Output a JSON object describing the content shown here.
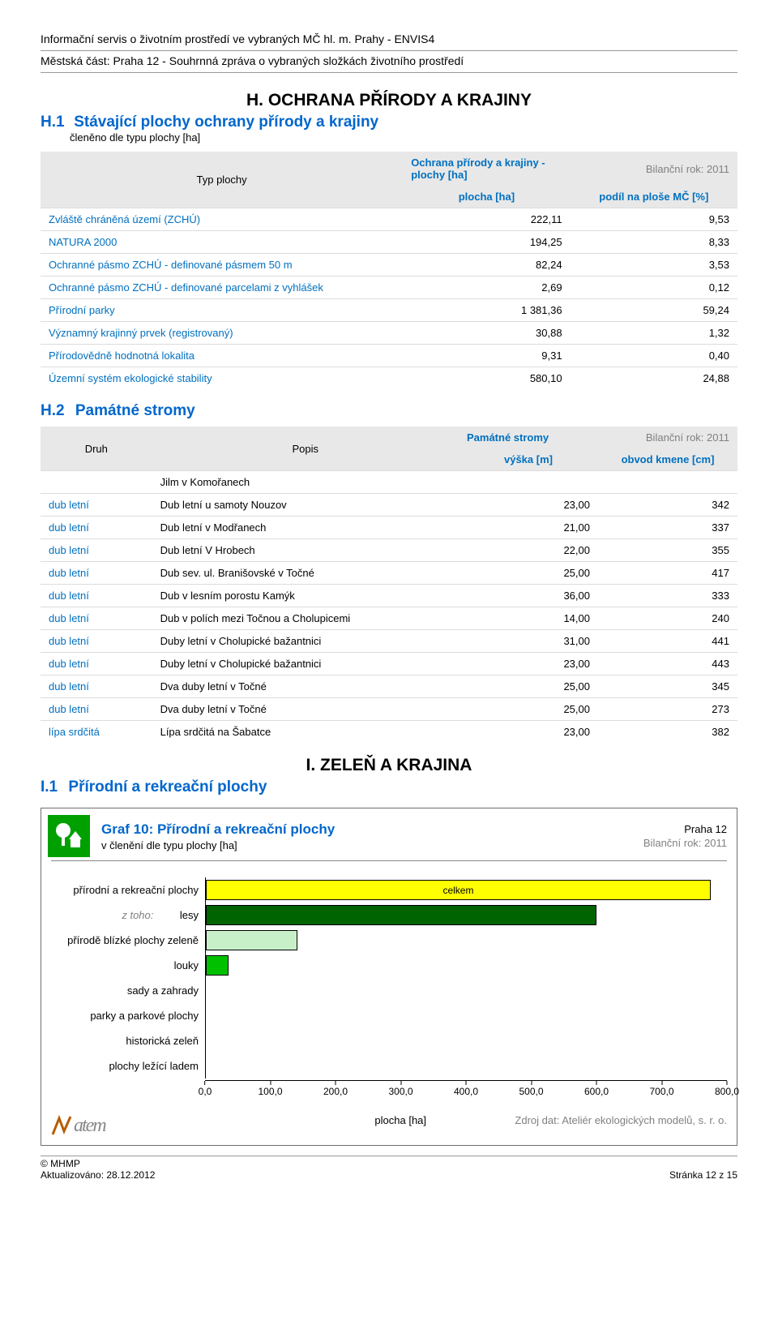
{
  "header": {
    "top": "Informační servis o životním prostředí ve vybraných MČ hl. m. Prahy - ENVIS4",
    "sub": "Městská část: Praha 12 - Souhrnná zpráva o vybraných složkách životního prostředí"
  },
  "sectionH": {
    "title": "H. OCHRANA PŘÍRODY A KRAJINY",
    "h1": {
      "code": "H.1",
      "title": "Stávající plochy ochrany přírody a krajiny",
      "desc": "členěno dle typu plochy [ha]"
    },
    "table1": {
      "header_left": "Typ plochy",
      "header_title": "Ochrana přírody a krajiny - plochy [ha]",
      "header_year": "Bilanční rok: 2011",
      "col1": "plocha [ha]",
      "col2": "podíl na ploše MČ [%]",
      "rows": [
        {
          "label": "Zvláště chráněná území (ZCHÚ)",
          "v1": "222,11",
          "v2": "9,53"
        },
        {
          "label": "NATURA 2000",
          "v1": "194,25",
          "v2": "8,33"
        },
        {
          "label": "Ochranné pásmo ZCHÚ - definované pásmem 50 m",
          "v1": "82,24",
          "v2": "3,53"
        },
        {
          "label": "Ochranné pásmo ZCHÚ - definované parcelami z vyhlášek",
          "v1": "2,69",
          "v2": "0,12"
        },
        {
          "label": "Přírodní parky",
          "v1": "1 381,36",
          "v2": "59,24"
        },
        {
          "label": "Významný krajinný prvek (registrovaný)",
          "v1": "30,88",
          "v2": "1,32"
        },
        {
          "label": "Přírodovědně hodnotná lokalita",
          "v1": "9,31",
          "v2": "0,40"
        },
        {
          "label": "Územní systém ekologické stability",
          "v1": "580,10",
          "v2": "24,88"
        }
      ]
    },
    "h2": {
      "code": "H.2",
      "title": "Památné stromy"
    },
    "table2": {
      "header_druh": "Druh",
      "header_popis": "Popis",
      "header_title": "Památné stromy",
      "header_year": "Bilanční rok: 2011",
      "col1": "výška [m]",
      "col2": "obvod kmene [cm]",
      "rows": [
        {
          "druh": "",
          "popis": "Jilm v Komořanech",
          "v1": "",
          "v2": ""
        },
        {
          "druh": "dub letní",
          "popis": "Dub letní u samoty Nouzov",
          "v1": "23,00",
          "v2": "342"
        },
        {
          "druh": "dub letní",
          "popis": "Dub letní v  Modřanech",
          "v1": "21,00",
          "v2": "337"
        },
        {
          "druh": "dub letní",
          "popis": "Dub letní V Hrobech",
          "v1": "22,00",
          "v2": "355"
        },
        {
          "druh": "dub letní",
          "popis": "Dub sev. ul. Branišovské v Točné",
          "v1": "25,00",
          "v2": "417"
        },
        {
          "druh": "dub letní",
          "popis": "Dub v lesním porostu Kamýk",
          "v1": "36,00",
          "v2": "333"
        },
        {
          "druh": "dub letní",
          "popis": "Dub v polích mezi Točnou a Cholupicemi",
          "v1": "14,00",
          "v2": "240"
        },
        {
          "druh": "dub letní",
          "popis": "Duby letní v Cholupické bažantnici",
          "v1": "31,00",
          "v2": "441"
        },
        {
          "druh": "dub letní",
          "popis": "Duby letní v Cholupické bažantnici",
          "v1": "23,00",
          "v2": "443"
        },
        {
          "druh": "dub letní",
          "popis": "Dva duby letní v Točné",
          "v1": "25,00",
          "v2": "345"
        },
        {
          "druh": "dub letní",
          "popis": "Dva duby letní v Točné",
          "v1": "25,00",
          "v2": "273"
        },
        {
          "druh": "lípa srdčitá",
          "popis": "Lípa srdčitá na Šabatce",
          "v1": "23,00",
          "v2": "382"
        }
      ]
    }
  },
  "sectionI": {
    "title": "I. ZELEŇ A KRAJINA",
    "i1": {
      "code": "I.1",
      "title": "Přírodní a rekreační plochy"
    }
  },
  "chart": {
    "type": "bar-horizontal",
    "title": "Graf 10: Přírodní a rekreační plochy",
    "subtitle": "v členění dle typu plochy [ha]",
    "location": "Praha 12",
    "year": "Bilanční rok: 2011",
    "xlabel": "plocha [ha]",
    "source": "Zdroj dat: Ateliér ekologických modelů, s. r. o.",
    "xmin": 0,
    "xmax": 800,
    "xtick_step": 100,
    "xtick_labels": [
      "0,0",
      "100,0",
      "200,0",
      "300,0",
      "400,0",
      "500,0",
      "600,0",
      "700,0",
      "800,0"
    ],
    "background_color": "#ffffff",
    "categories": [
      {
        "label": "přírodní a rekreační plochy",
        "value": 775,
        "color": "#ffff00",
        "text": "celkem"
      },
      {
        "label": "z toho:",
        "sublabel": "lesy",
        "value": 600,
        "color": "#006400"
      },
      {
        "label": "přírodě blízké plochy zeleně",
        "value": 140,
        "color": "#c8f0c8"
      },
      {
        "label": "louky",
        "sublabel": "",
        "value": 35,
        "color": "#00c000"
      },
      {
        "label": "sady a zahrady",
        "value": 0,
        "color": "#ffffff"
      },
      {
        "label": "parky a parkové plochy",
        "value": 0,
        "color": "#ffffff"
      },
      {
        "label": "historická zeleň",
        "value": 0,
        "color": "#ffffff"
      },
      {
        "label": "plochy ležící ladem",
        "value": 0,
        "color": "#ffffff"
      }
    ],
    "icon_bg": "#00a000"
  },
  "footer": {
    "copyright": "© MHMP",
    "updated": "Aktualizováno: 28.12.2012",
    "page": "Stránka 12 z 15",
    "logo_text": "atem"
  }
}
